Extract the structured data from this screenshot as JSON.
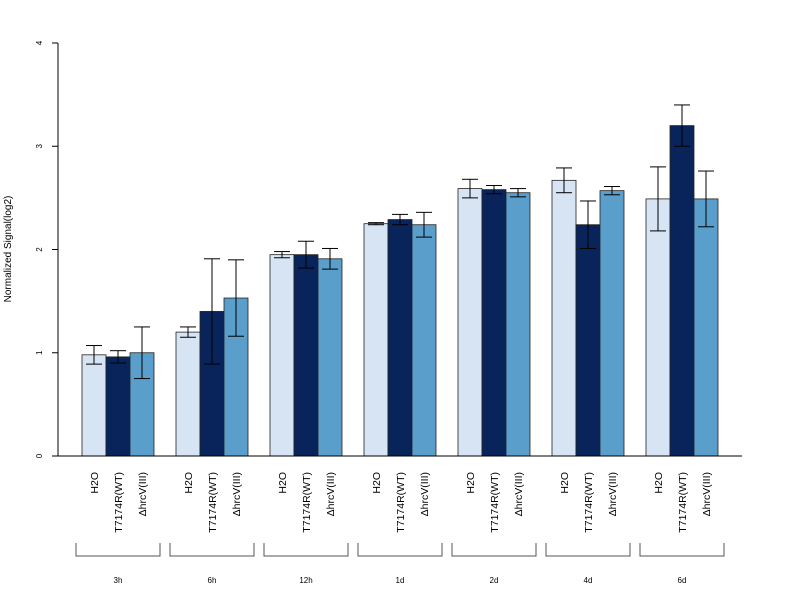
{
  "chart_data": {
    "type": "bar",
    "ylabel": "Normalized Signal(log2)",
    "ylim": [
      0,
      4
    ],
    "yticks": [
      "0",
      "1",
      "2",
      "3",
      "4"
    ],
    "groups": [
      "3h",
      "6h",
      "12h",
      "1d",
      "2d",
      "4d",
      "6d"
    ],
    "series": [
      {
        "name": "H2O",
        "color": "#d6e4f3",
        "values": [
          0.98,
          1.2,
          1.95,
          2.25,
          2.59,
          2.67,
          2.49
        ],
        "errors": [
          0.09,
          0.05,
          0.03,
          0.01,
          0.09,
          0.12,
          0.31
        ]
      },
      {
        "name": "T7174R(WT)",
        "color": "#08245a",
        "values": [
          0.96,
          1.4,
          1.95,
          2.29,
          2.58,
          2.24,
          3.2
        ],
        "errors": [
          0.06,
          0.51,
          0.13,
          0.05,
          0.04,
          0.23,
          0.2
        ]
      },
      {
        "name": "ΔhrcV(III)",
        "color": "#5a9ecc",
        "values": [
          1.0,
          1.53,
          1.91,
          2.24,
          2.55,
          2.57,
          2.49
        ],
        "errors": [
          0.25,
          0.37,
          0.1,
          0.12,
          0.04,
          0.04,
          0.27
        ]
      }
    ],
    "grid": false,
    "legend": "none"
  }
}
